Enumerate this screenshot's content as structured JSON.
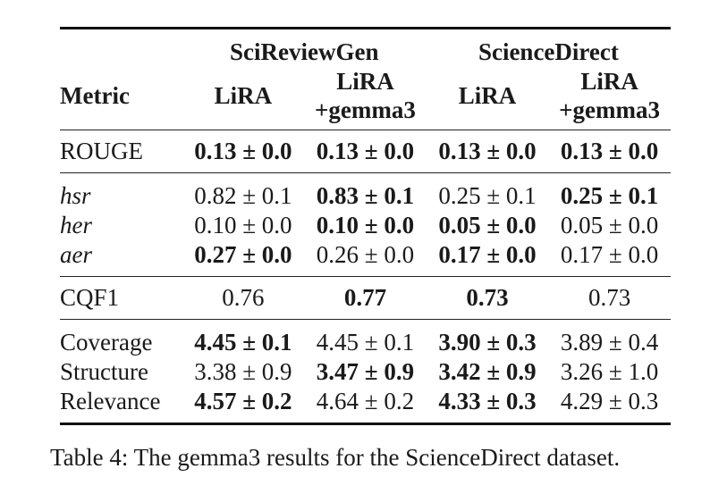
{
  "table": {
    "groups": [
      "SciReviewGen",
      "ScienceDirect"
    ],
    "metric_header": "Metric",
    "subheaders": [
      {
        "line1": "LiRA",
        "line2": ""
      },
      {
        "line1": "LiRA",
        "line2": "+gemma3"
      },
      {
        "line1": "LiRA",
        "line2": ""
      },
      {
        "line1": "LiRA",
        "line2": "+gemma3"
      }
    ],
    "sections": [
      {
        "rows": [
          {
            "metric": "ROUGE",
            "cells": [
              {
                "text": "0.13 ± 0.0",
                "bold": true
              },
              {
                "text": "0.13 ± 0.0",
                "bold": true
              },
              {
                "text": "0.13 ± 0.0",
                "bold": true
              },
              {
                "text": "0.13 ± 0.0",
                "bold": true
              }
            ]
          }
        ]
      },
      {
        "rows": [
          {
            "metric": "hsr",
            "italic": true,
            "cells": [
              {
                "text": "0.82 ± 0.1",
                "bold": false
              },
              {
                "text": "0.83 ± 0.1",
                "bold": true
              },
              {
                "text": "0.25 ± 0.1",
                "bold": false
              },
              {
                "text": "0.25 ± 0.1",
                "bold": true
              }
            ]
          },
          {
            "metric": "her",
            "italic": true,
            "cells": [
              {
                "text": "0.10 ± 0.0",
                "bold": false
              },
              {
                "text": "0.10 ± 0.0",
                "bold": true
              },
              {
                "text": "0.05 ± 0.0",
                "bold": true
              },
              {
                "text": "0.05 ± 0.0",
                "bold": false
              }
            ]
          },
          {
            "metric": "aer",
            "italic": true,
            "cells": [
              {
                "text": "0.27 ± 0.0",
                "bold": true
              },
              {
                "text": "0.26 ± 0.0",
                "bold": false
              },
              {
                "text": "0.17 ± 0.0",
                "bold": true
              },
              {
                "text": "0.17 ± 0.0",
                "bold": false
              }
            ]
          }
        ]
      },
      {
        "rows": [
          {
            "metric": "CQF1",
            "cells": [
              {
                "text": "0.76",
                "bold": false
              },
              {
                "text": "0.77",
                "bold": true
              },
              {
                "text": "0.73",
                "bold": true
              },
              {
                "text": "0.73",
                "bold": false
              }
            ]
          }
        ]
      },
      {
        "rows": [
          {
            "metric": "Coverage",
            "cells": [
              {
                "text": "4.45 ± 0.1",
                "bold": true
              },
              {
                "text": "4.45 ± 0.1",
                "bold": false
              },
              {
                "text": "3.90 ± 0.3",
                "bold": true
              },
              {
                "text": "3.89 ± 0.4",
                "bold": false
              }
            ]
          },
          {
            "metric": "Structure",
            "cells": [
              {
                "text": "3.38 ± 0.9",
                "bold": false
              },
              {
                "text": "3.47 ± 0.9",
                "bold": true
              },
              {
                "text": "3.42 ± 0.9",
                "bold": true
              },
              {
                "text": "3.26 ± 1.0",
                "bold": false
              }
            ]
          },
          {
            "metric": "Relevance",
            "cells": [
              {
                "text": "4.57 ± 0.2",
                "bold": true
              },
              {
                "text": "4.64 ± 0.2",
                "bold": false
              },
              {
                "text": "4.33 ± 0.3",
                "bold": true
              },
              {
                "text": "4.29 ± 0.3",
                "bold": false
              }
            ]
          }
        ]
      }
    ]
  },
  "caption": "Table 4: The gemma3 results for the ScienceDirect dataset."
}
